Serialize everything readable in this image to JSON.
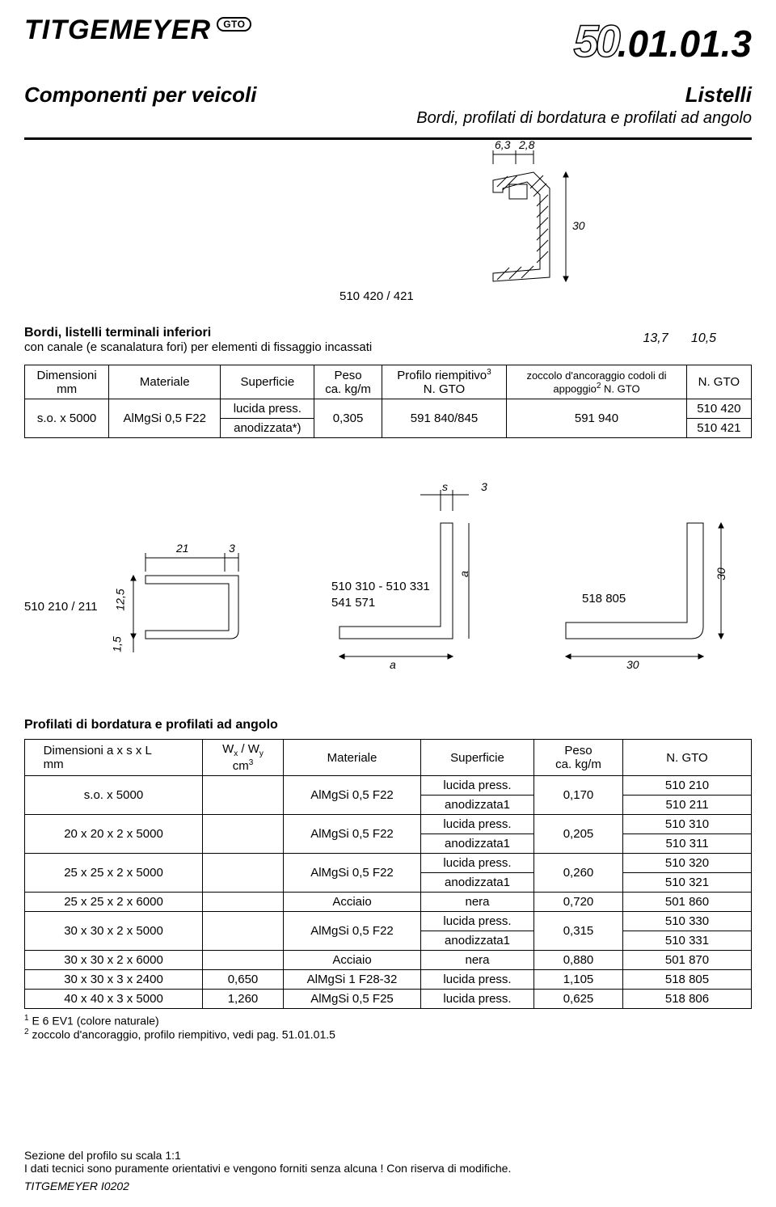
{
  "header": {
    "brand": "TITGEMEYER",
    "badge": "GTO",
    "pagecode_big": "50",
    "pagecode_rest": ".01.01.3",
    "left_sub": "Componenti per veicoli",
    "right_sub_title": "Listelli",
    "right_sub_desc": "Bordi, profilati di bordatura e profilati ad angolo"
  },
  "fig1": {
    "d_top1": "6,3",
    "d_top2": "2,8",
    "d_right": "30",
    "part": "510 420 / 421",
    "d_bottom_a": "13,7",
    "d_bottom_b": "10,5",
    "svg": {
      "stroke": "#000000",
      "fill_hatch": "#ffffff"
    }
  },
  "intro": {
    "bold": "Bordi, listelli terminali inferiori",
    "norm": "con canale (e scanalatura fori) per elementi di fissaggio incassati"
  },
  "table1": {
    "head": {
      "c1a": "Dimensioni",
      "c1b": "mm",
      "c2": "Materiale",
      "c3": "Superficie",
      "c4a": "Peso",
      "c4b": "ca. kg/m",
      "c5a": "Profilo riempitivo",
      "c5a_sup": "3",
      "c5b": "N. GTO",
      "c6a": "zoccolo d'ancoraggio codoli di",
      "c6b": "appoggio",
      "c6b_sup": "2",
      "c6c": " N. GTO",
      "c7": "N. GTO"
    },
    "row": {
      "dim": "s.o. x 5000",
      "mat": "AlMgSi 0,5 F22",
      "surf1": "lucida press.",
      "surf2": "anodizzata*)",
      "peso": "0,305",
      "riemp": "591 840/845",
      "zocc": "591 940",
      "gto1": "510 420",
      "gto2": "510 421"
    }
  },
  "fig2": {
    "left_part": "510 210 / 211",
    "left_h": "12,5",
    "left_w1": "21",
    "left_w2": "3",
    "left_bh": "1,5",
    "mid_a": "510 310 - 510 331",
    "mid_b": "541 571",
    "mid_s": "s",
    "mid_s_val": "3",
    "mid_al": "a",
    "mid_a2": "a",
    "right_part": "518 805",
    "right_h": "30",
    "right_w": "30"
  },
  "table2": {
    "title": "Profilati di bordatura e profilati ad angolo",
    "head": {
      "c1a": "Dimensioni  a x s x L",
      "c1b": "mm",
      "c2a": "W",
      "c2a_x": "x",
      "c2b": " / W",
      "c2b_y": "y",
      "c2c": "cm",
      "c2c_sup": "3",
      "c3": "Materiale",
      "c4": "Superficie",
      "c5a": "Peso",
      "c5b": "ca. kg/m",
      "c6": "N. GTO"
    },
    "rows": [
      {
        "dim": "s.o. x 5000",
        "w": "",
        "mat": "AlMgSi 0,5 F22",
        "surf1": "lucida press.",
        "surf2": "anodizzata1",
        "peso": "0,170",
        "g1": "510 210",
        "g2": "510 211"
      },
      {
        "dim": "20 x 20 x 2 x 5000",
        "w": "",
        "mat": "AlMgSi 0,5 F22",
        "surf1": "lucida press.",
        "surf2": "anodizzata1",
        "peso": "0,205",
        "g1": "510 310",
        "g2": "510 311"
      },
      {
        "dim": "25 x 25 x 2 x 5000",
        "w": "",
        "mat": "AlMgSi 0,5 F22",
        "surf1": "lucida press.",
        "surf2": "anodizzata1",
        "peso": "0,260",
        "g1": "510 320",
        "g2": "510 321"
      },
      {
        "dim": "25 x 25 x 2 x 6000",
        "w": "",
        "mat": "Acciaio",
        "surf": "nera",
        "peso": "0,720",
        "g": "501 860",
        "single": true
      },
      {
        "dim": "30 x 30 x 2 x 5000",
        "w": "",
        "mat": "AlMgSi 0,5 F22",
        "surf1": "lucida press.",
        "surf2": "anodizzata1",
        "peso": "0,315",
        "g1": "510 330",
        "g2": "510 331"
      },
      {
        "dim": "30 x 30 x 2 x 6000",
        "w": "",
        "mat": "Acciaio",
        "surf": "nera",
        "peso": "0,880",
        "g": "501 870",
        "single": true
      },
      {
        "dim": "30 x 30 x 3 x 2400",
        "w": "0,650",
        "mat": "AlMgSi 1 F28-32",
        "surf": "lucida press.",
        "peso": "1,105",
        "g": "518 805",
        "single": true
      },
      {
        "dim": "40 x 40 x 3 x 5000",
        "w": "1,260",
        "mat": "AlMgSi 0,5 F25",
        "surf": "lucida press.",
        "peso": "0,625",
        "g": "518 806",
        "single": true
      }
    ]
  },
  "footnotes": {
    "f1_sup": "1",
    "f1": " E 6 EV1 (colore naturale)",
    "f2_sup": "2",
    "f2": " zoccolo d'ancoraggio, profilo riempitivo, vedi pag. 51.01.01.5"
  },
  "footer": {
    "l1": "Sezione del profilo su scala 1:1",
    "l2": "I dati tecnici sono puramente orientativi e vengono forniti senza alcuna ! Con riserva di modifiche.",
    "docid": "TITGEMEYER I0202"
  },
  "colors": {
    "text": "#000000",
    "rule": "#000000",
    "background": "#ffffff"
  }
}
